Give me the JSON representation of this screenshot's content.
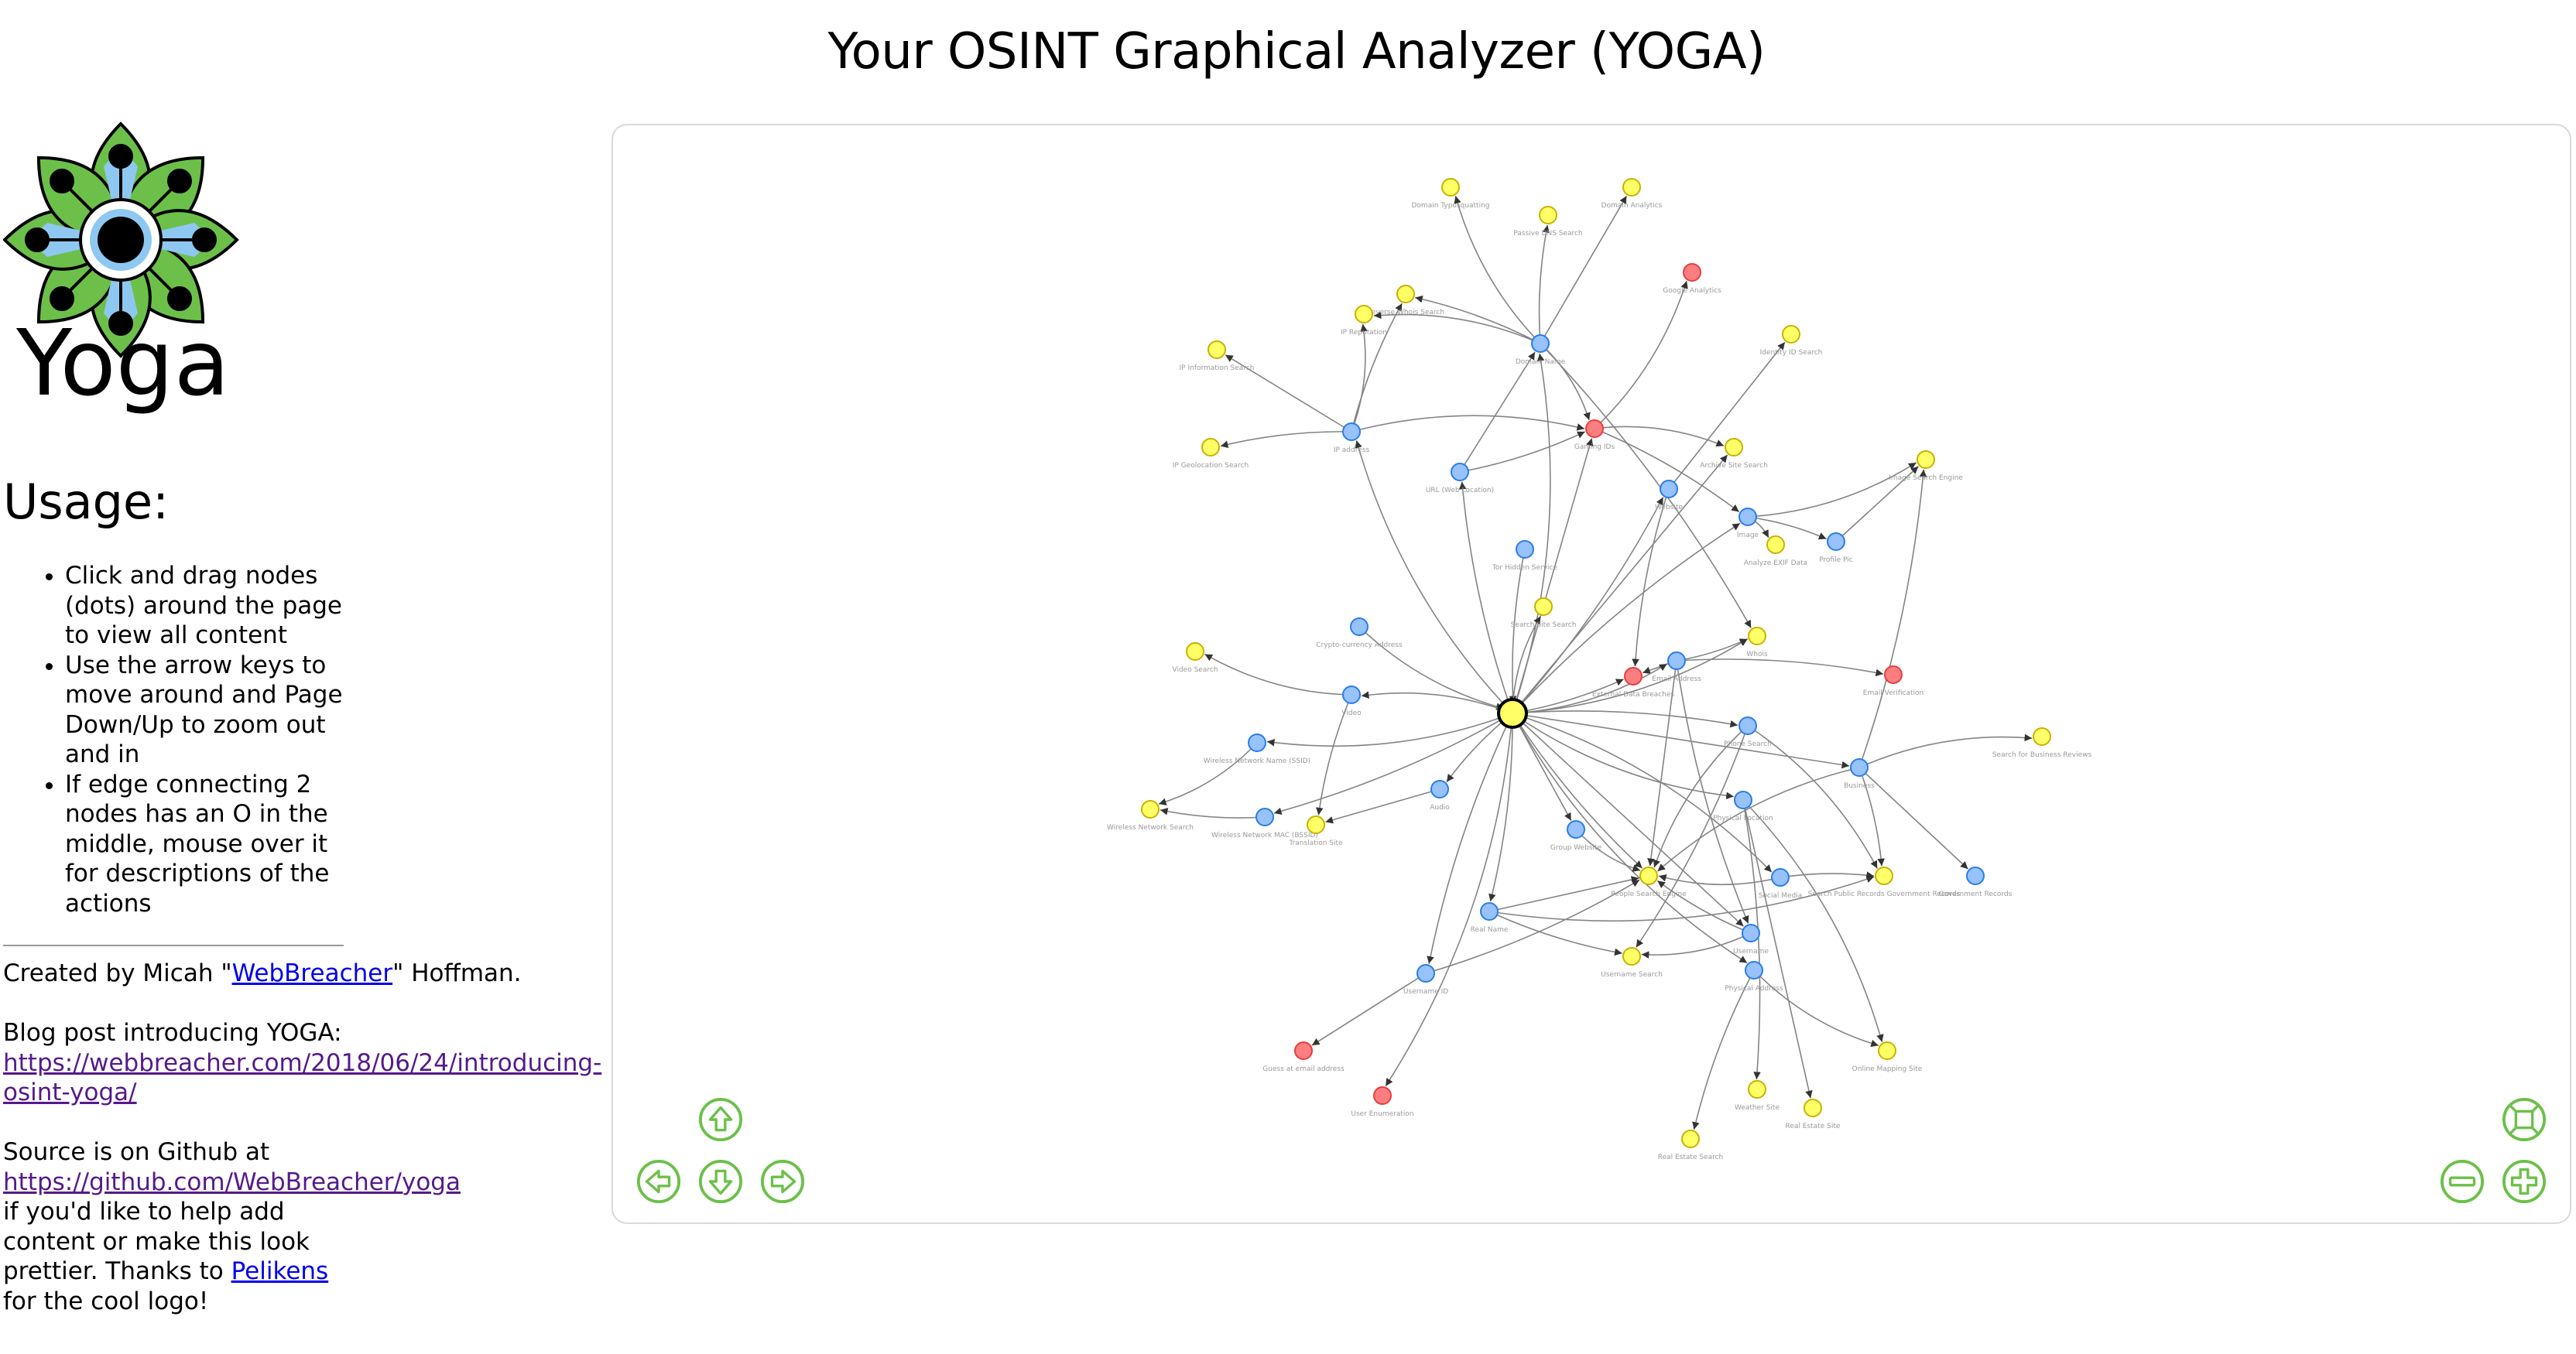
{
  "page": {
    "title": "Your OSINT Graphical Analyzer (YOGA)"
  },
  "logo": {
    "text": "Yoga",
    "colors": {
      "green": "#6cc04a",
      "blue": "#8ec8f0",
      "ink": "#000000"
    }
  },
  "sidebar": {
    "usage_heading": "Usage:",
    "usage_items": [
      "Click and drag nodes (dots) around the page to view all content",
      "Use the arrow keys to move around and Page Down/Up to zoom out and in",
      "If edge connecting 2 nodes has an O in the middle, mouse over it for descriptions of the actions"
    ],
    "credit_prefix": "Created by Micah \"",
    "credit_link": "WebBreacher",
    "credit_suffix": "\" Hoffman.",
    "blog_label": "Blog post introducing YOGA:",
    "blog_url": "https://webbreacher.com/2018/06/24/introducing-osint-yoga/",
    "source_label": "Source is on Github at",
    "source_url": "https://github.com/WebBreacher/yoga",
    "source_after": "if you'd like to help add content or make this look prettier. Thanks to",
    "logo_credit_link": "Pelikens",
    "logo_credit_after": "for the cool logo!"
  },
  "graph": {
    "colors": {
      "blue": "#97c2fc",
      "blue_border": "#2b7ce9",
      "yellow": "#ffff66",
      "yellow_border": "#c9b100",
      "red": "#fb7e81",
      "red_border": "#e63e3e",
      "edge": "#848484",
      "label": "#999999",
      "nav": "#6cc04a"
    },
    "nodes": [
      {
        "id": "domain-typosquatting",
        "label": "Domain Typosquatting",
        "type": "yellow"
      },
      {
        "id": "passive-dns-search",
        "label": "Passive DNS Search",
        "type": "yellow"
      },
      {
        "id": "domain-analytics",
        "label": "Domain Analytics",
        "type": "yellow"
      },
      {
        "id": "google-analytics",
        "label": "Google Analytics",
        "type": "red"
      },
      {
        "id": "reverse-whois-search",
        "label": "Reverse Whois Search",
        "type": "yellow"
      },
      {
        "id": "ip-reputation",
        "label": "IP Reputation",
        "type": "yellow"
      },
      {
        "id": "domain-name",
        "label": "Domain Name",
        "type": "blue"
      },
      {
        "id": "ip-information-search",
        "label": "IP Information Search",
        "type": "yellow"
      },
      {
        "id": "identity-id-search",
        "label": "Identity ID Search",
        "type": "yellow"
      },
      {
        "id": "ip-address",
        "label": "IP address",
        "type": "blue"
      },
      {
        "id": "gaming-ids",
        "label": "Gaming IDs",
        "type": "red"
      },
      {
        "id": "ip-geolocation-search",
        "label": "IP Geolocation Search",
        "type": "yellow"
      },
      {
        "id": "url",
        "label": "URL (Web Location)",
        "type": "blue"
      },
      {
        "id": "archive-site-search",
        "label": "Archive Site Search",
        "type": "yellow"
      },
      {
        "id": "image-search-engine",
        "label": "Image Search Engine",
        "type": "yellow"
      },
      {
        "id": "website",
        "label": "Website",
        "type": "blue"
      },
      {
        "id": "image",
        "label": "Image",
        "type": "blue"
      },
      {
        "id": "analyze-exif",
        "label": "Analyze EXIF Data",
        "type": "yellow"
      },
      {
        "id": "profile-pic",
        "label": "Profile Pic",
        "type": "blue"
      },
      {
        "id": "tor-hidden-service",
        "label": "Tor Hidden Service",
        "type": "blue"
      },
      {
        "id": "search-site-search",
        "label": "Search Site Search",
        "type": "yellow"
      },
      {
        "id": "crypto-address",
        "label": "Crypto-currency Address",
        "type": "blue"
      },
      {
        "id": "video-search",
        "label": "Video Search",
        "type": "yellow"
      },
      {
        "id": "whois",
        "label": "Whois",
        "type": "yellow"
      },
      {
        "id": "email-address",
        "label": "Email Address",
        "type": "blue"
      },
      {
        "id": "external-data",
        "label": "External Data Breaches",
        "type": "red"
      },
      {
        "id": "email-verification",
        "label": "Email Verification",
        "type": "red"
      },
      {
        "id": "video",
        "label": "Video",
        "type": "blue"
      },
      {
        "id": "hub",
        "label": "",
        "type": "yellow"
      },
      {
        "id": "phone-search",
        "label": "Phone Search",
        "type": "blue"
      },
      {
        "id": "wireless-ssid",
        "label": "Wireless Network Name (SSID)",
        "type": "blue"
      },
      {
        "id": "search-business-reviews",
        "label": "Search for Business Reviews",
        "type": "yellow"
      },
      {
        "id": "business",
        "label": "Business",
        "type": "blue"
      },
      {
        "id": "wireless-search",
        "label": "Wireless Network Search",
        "type": "yellow"
      },
      {
        "id": "wireless-mac",
        "label": "Wireless Network MAC (BSSID)",
        "type": "blue"
      },
      {
        "id": "audio",
        "label": "Audio",
        "type": "blue"
      },
      {
        "id": "translation-site",
        "label": "Translation Site",
        "type": "yellow"
      },
      {
        "id": "group-website",
        "label": "Group Website",
        "type": "blue"
      },
      {
        "id": "people-search-engine",
        "label": "People Search Engine",
        "type": "yellow"
      },
      {
        "id": "physical-location",
        "label": "Physical Location",
        "type": "blue"
      },
      {
        "id": "public-records",
        "label": "Search Public Records Government Records",
        "type": "yellow"
      },
      {
        "id": "government-records",
        "label": "Government Records",
        "type": "blue"
      },
      {
        "id": "social-media",
        "label": "Social Media",
        "type": "blue"
      },
      {
        "id": "real-name",
        "label": "Real Name",
        "type": "blue"
      },
      {
        "id": "username",
        "label": "Username",
        "type": "blue"
      },
      {
        "id": "username-search",
        "label": "Username Search",
        "type": "yellow"
      },
      {
        "id": "physical-address",
        "label": "Physical Address",
        "type": "blue"
      },
      {
        "id": "user-id",
        "label": "Username ID",
        "type": "blue"
      },
      {
        "id": "guess-email",
        "label": "Guess at email address",
        "type": "red"
      },
      {
        "id": "online-mapping",
        "label": "Online Mapping Site",
        "type": "yellow"
      },
      {
        "id": "user-enumeration",
        "label": "User Enumeration",
        "type": "red"
      },
      {
        "id": "weather-site",
        "label": "Weather Site",
        "type": "yellow"
      },
      {
        "id": "real-estate-site",
        "label": "Real Estate Site",
        "type": "yellow"
      },
      {
        "id": "real-estate-search",
        "label": "Real Estate Search",
        "type": "yellow"
      }
    ],
    "edges": [
      [
        "domain-name",
        "domain-typosquatting"
      ],
      [
        "domain-name",
        "passive-dns-search"
      ],
      [
        "domain-name",
        "domain-analytics"
      ],
      [
        "domain-name",
        "reverse-whois-search"
      ],
      [
        "domain-name",
        "ip-reputation"
      ],
      [
        "domain-name",
        "gaming-ids"
      ],
      [
        "domain-name",
        "whois"
      ],
      [
        "ip-address",
        "ip-information-search"
      ],
      [
        "ip-address",
        "ip-geolocation-search"
      ],
      [
        "ip-address",
        "ip-reputation"
      ],
      [
        "ip-address",
        "gaming-ids"
      ],
      [
        "ip-address",
        "reverse-whois-search"
      ],
      [
        "url",
        "domain-name"
      ],
      [
        "url",
        "gaming-ids"
      ],
      [
        "gaming-ids",
        "google-analytics"
      ],
      [
        "gaming-ids",
        "archive-site-search"
      ],
      [
        "gaming-ids",
        "image"
      ],
      [
        "website",
        "identity-id-search"
      ],
      [
        "website",
        "external-data"
      ],
      [
        "image",
        "image-search-engine"
      ],
      [
        "image",
        "analyze-exif"
      ],
      [
        "image",
        "profile-pic"
      ],
      [
        "profile-pic",
        "image-search-engine"
      ],
      [
        "tor-hidden-service",
        "hub"
      ],
      [
        "crypto-address",
        "hub"
      ],
      [
        "video",
        "video-search"
      ],
      [
        "email-address",
        "email-verification"
      ],
      [
        "email-address",
        "external-data"
      ],
      [
        "email-address",
        "whois"
      ],
      [
        "hub",
        "domain-name"
      ],
      [
        "hub",
        "ip-address"
      ],
      [
        "hub",
        "url"
      ],
      [
        "hub",
        "gaming-ids"
      ],
      [
        "hub",
        "external-data"
      ],
      [
        "hub",
        "email-address"
      ],
      [
        "hub",
        "search-site-search"
      ],
      [
        "hub",
        "phone-search"
      ],
      [
        "hub",
        "business"
      ],
      [
        "hub",
        "audio"
      ],
      [
        "hub",
        "video"
      ],
      [
        "hub",
        "wireless-ssid"
      ],
      [
        "hub",
        "wireless-mac"
      ],
      [
        "hub",
        "group-website"
      ],
      [
        "hub",
        "people-search-engine"
      ],
      [
        "hub",
        "physical-location"
      ],
      [
        "hub",
        "social-media"
      ],
      [
        "hub",
        "real-name"
      ],
      [
        "hub",
        "username"
      ],
      [
        "hub",
        "user-id"
      ],
      [
        "hub",
        "physical-address"
      ],
      [
        "hub",
        "user-enumeration"
      ],
      [
        "hub",
        "image"
      ],
      [
        "hub",
        "archive-site-search"
      ],
      [
        "hub",
        "website"
      ],
      [
        "hub",
        "whois"
      ],
      [
        "wireless-ssid",
        "wireless-search"
      ],
      [
        "wireless-mac",
        "wireless-search"
      ],
      [
        "audio",
        "translation-site"
      ],
      [
        "video",
        "translation-site"
      ],
      [
        "group-website",
        "people-search-engine"
      ],
      [
        "business",
        "search-business-reviews"
      ],
      [
        "business",
        "public-records"
      ],
      [
        "business",
        "government-records"
      ],
      [
        "business",
        "image-search-engine"
      ],
      [
        "business",
        "people-search-engine"
      ],
      [
        "physical-location",
        "online-mapping"
      ],
      [
        "physical-location",
        "weather-site"
      ],
      [
        "physical-location",
        "real-estate-site"
      ],
      [
        "physical-address",
        "real-estate-search"
      ],
      [
        "physical-address",
        "online-mapping"
      ],
      [
        "social-media",
        "people-search-engine"
      ],
      [
        "social-media",
        "public-records"
      ],
      [
        "real-name",
        "people-search-engine"
      ],
      [
        "real-name",
        "username-search"
      ],
      [
        "real-name",
        "public-records"
      ],
      [
        "username",
        "username-search"
      ],
      [
        "username",
        "people-search-engine"
      ],
      [
        "user-id",
        "guess-email"
      ],
      [
        "user-id",
        "people-search-engine"
      ],
      [
        "phone-search",
        "people-search-engine"
      ],
      [
        "phone-search",
        "public-records"
      ],
      [
        "phone-search",
        "username-search"
      ],
      [
        "email-address",
        "people-search-engine"
      ],
      [
        "email-address",
        "username"
      ]
    ]
  },
  "controls": {
    "up": "arrow-up-icon",
    "down": "arrow-down-icon",
    "left": "arrow-left-icon",
    "right": "arrow-right-icon",
    "fit": "fit-screen-icon",
    "zoom_out": "zoom-out-icon",
    "zoom_in": "zoom-in-icon"
  }
}
